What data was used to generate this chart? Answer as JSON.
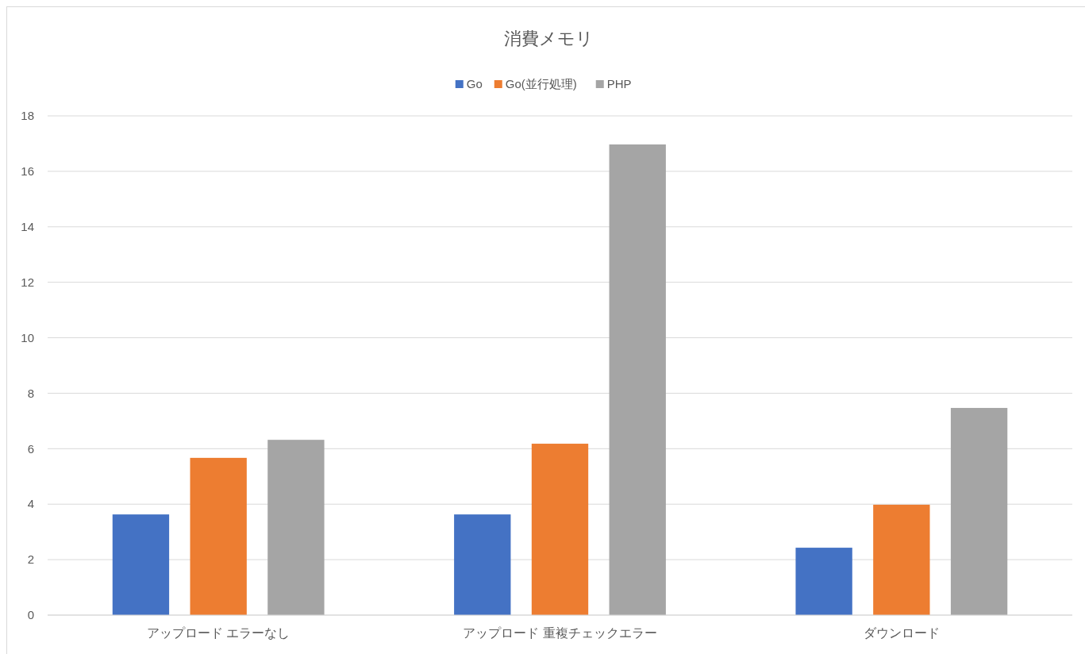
{
  "chart_data": {
    "type": "bar",
    "title": "消費メモリ",
    "categories": [
      "アップロード エラーなし",
      "アップロード 重複チェックエラー",
      "ダウンロード"
    ],
    "series": [
      {
        "name": "Go",
        "color": "#4472c4",
        "values": [
          3.63,
          3.63,
          2.43
        ]
      },
      {
        "name": "Go(並行処理)",
        "color": "#ed7d31",
        "values": [
          5.67,
          6.18,
          3.98
        ]
      },
      {
        "name": "PHP",
        "color": "#a5a5a5",
        "values": [
          6.32,
          16.97,
          7.47
        ]
      }
    ],
    "ylim": [
      0,
      18
    ],
    "yticks": [
      0,
      2,
      4,
      6,
      8,
      10,
      12,
      14,
      16,
      18
    ],
    "grid": "y",
    "legend": "top"
  }
}
